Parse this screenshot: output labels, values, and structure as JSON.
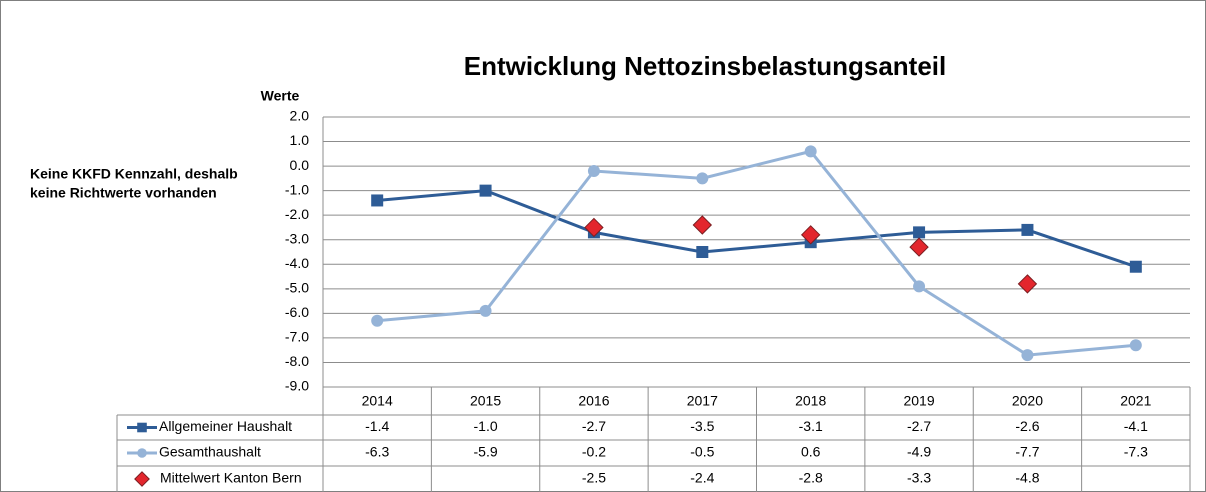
{
  "chart_data": {
    "type": "line",
    "title": "Entwicklung Nettozinsbelastungsanteil",
    "ylabel": "Werte",
    "annotation": [
      "Keine KKFD Kennzahl, deshalb",
      "keine Richtwerte vorhanden"
    ],
    "categories": [
      "2014",
      "2015",
      "2016",
      "2017",
      "2018",
      "2019",
      "2020",
      "2021"
    ],
    "series": [
      {
        "name": "Allgemeiner Haushalt",
        "color": "#2e5c96",
        "marker": "square",
        "line": true,
        "values": [
          -1.4,
          -1.0,
          -2.7,
          -3.5,
          -3.1,
          -2.7,
          -2.6,
          -4.1
        ],
        "value_labels": [
          "-1.4",
          "-1.0",
          "-2.7",
          "-3.5",
          "-3.1",
          "-2.7",
          "-2.6",
          "-4.1"
        ]
      },
      {
        "name": "Gesamthaushalt",
        "color": "#95b3d7",
        "marker": "circle",
        "line": true,
        "values": [
          -6.3,
          -5.9,
          -0.2,
          -0.5,
          0.6,
          -4.9,
          -7.7,
          -7.3
        ],
        "value_labels": [
          "-6.3",
          "-5.9",
          "-0.2",
          "-0.5",
          "0.6",
          "-4.9",
          "-7.7",
          "-7.3"
        ]
      },
      {
        "name": "Mittelwert Kanton Bern",
        "color": "#e3262d",
        "marker": "diamond",
        "line": false,
        "values": [
          null,
          null,
          -2.5,
          -2.4,
          -2.8,
          -3.3,
          -4.8,
          null
        ],
        "value_labels": [
          null,
          null,
          "-2.5",
          "-2.4",
          "-2.8",
          "-3.3",
          "-4.8",
          null
        ]
      }
    ],
    "ylim": [
      -9,
      2
    ],
    "yticks": [
      {
        "value": 2,
        "label": "2.0"
      },
      {
        "value": 1,
        "label": "1.0"
      },
      {
        "value": 0,
        "label": "0.0"
      },
      {
        "value": -1,
        "label": "-1.0"
      },
      {
        "value": -2,
        "label": "-2.0"
      },
      {
        "value": -3,
        "label": "-3.0"
      },
      {
        "value": -4,
        "label": "-4.0"
      },
      {
        "value": -5,
        "label": "-5.0"
      },
      {
        "value": -6,
        "label": "-6.0"
      },
      {
        "value": -7,
        "label": "-7.0"
      },
      {
        "value": -8,
        "label": "-8.0"
      },
      {
        "value": -9,
        "label": "-9.0"
      }
    ],
    "grid": true
  }
}
